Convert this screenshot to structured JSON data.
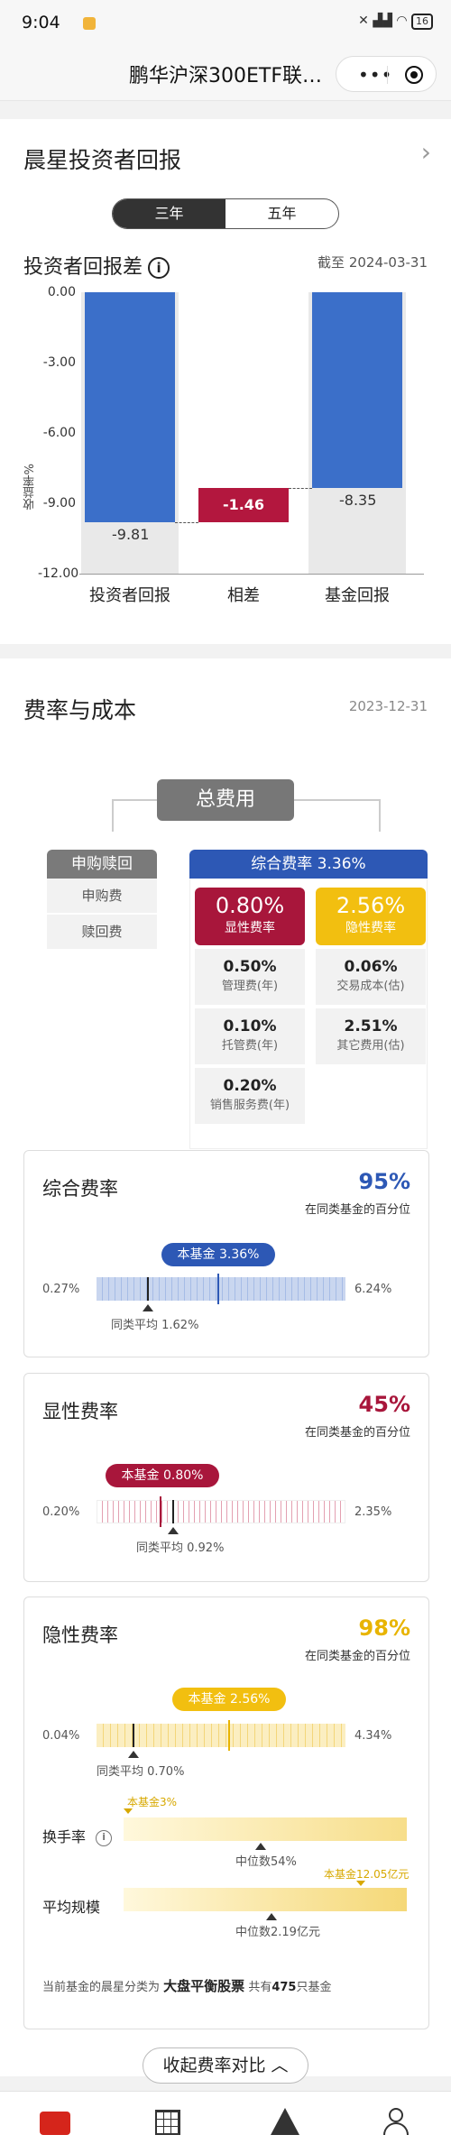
{
  "status": {
    "time": "9:04",
    "battery": "16"
  },
  "nav": {
    "title": "鹏华沪深300ETF联…",
    "menu_icon": "more-dots-icon",
    "close_icon": "target-icon"
  },
  "returns": {
    "title": "晨星投资者回报",
    "tabs": [
      "三年",
      "五年"
    ],
    "subtitle": "投资者回报差",
    "as_of": "截至 2024-03-31",
    "y_axis_label": "收益率%"
  },
  "chart_data": {
    "type": "bar",
    "categories": [
      "投资者回报",
      "相差",
      "基金回报"
    ],
    "values": [
      -9.81,
      -1.46,
      -8.35
    ],
    "value_labels": [
      "-9.81",
      "-1.46",
      "-8.35"
    ],
    "ylabel": "收益率%",
    "ylim": [
      -12.0,
      0.0
    ],
    "yticks": [
      "0.00",
      "-3.00",
      "-6.00",
      "-9.00",
      "-12.00"
    ],
    "colors": [
      "#3b6fc9",
      "#b3173e",
      "#3b6fc9"
    ]
  },
  "fees": {
    "title": "费率与成本",
    "date": "2023-12-31",
    "total": "总费用",
    "subscription": {
      "header": "申购赎回",
      "items": [
        "申购费",
        "赎回费"
      ]
    },
    "overall_header": "综合费率 3.36%",
    "explicit": {
      "value": "0.80%",
      "label": "显性费率",
      "items": [
        {
          "value": "0.50%",
          "label": "管理费(年)"
        },
        {
          "value": "0.10%",
          "label": "托管费(年)"
        },
        {
          "value": "0.20%",
          "label": "销售服务费(年)"
        }
      ]
    },
    "implicit": {
      "value": "2.56%",
      "label": "隐性费率",
      "items": [
        {
          "value": "0.06%",
          "label": "交易成本(估)"
        },
        {
          "value": "2.51%",
          "label": "其它费用(估)"
        }
      ]
    }
  },
  "panels": [
    {
      "title": "综合费率",
      "pct": "95%",
      "pct_caption": "在同类基金的百分位",
      "bubble": "本基金 3.36%",
      "min": "0.27%",
      "max": "6.24%",
      "avg": "同类平均 1.62%"
    },
    {
      "title": "显性费率",
      "pct": "45%",
      "pct_caption": "在同类基金的百分位",
      "bubble": "本基金 0.80%",
      "min": "0.20%",
      "max": "2.35%",
      "avg": "同类平均 0.92%"
    },
    {
      "title": "隐性费率",
      "pct": "98%",
      "pct_caption": "在同类基金的百分位",
      "bubble": "本基金 2.56%",
      "min": "0.04%",
      "max": "4.34%",
      "avg": "同类平均 0.70%"
    }
  ],
  "turnover": {
    "label": "换手率",
    "fund": "本基金3%",
    "median": "中位数54%"
  },
  "scale": {
    "label": "平均规模",
    "fund": "本基金12.05亿元",
    "median": "中位数2.19亿元"
  },
  "note": {
    "prefix": "当前基金的晨星分类为",
    "category": "大盘平衡股票",
    "mid": "共有",
    "count": "475",
    "suffix": "只基金"
  },
  "collapse_button": "收起费率对比",
  "tabbar": {
    "icons": [
      "briefcase-icon",
      "grid-icon",
      "ruler-icon",
      "user-icon"
    ]
  }
}
